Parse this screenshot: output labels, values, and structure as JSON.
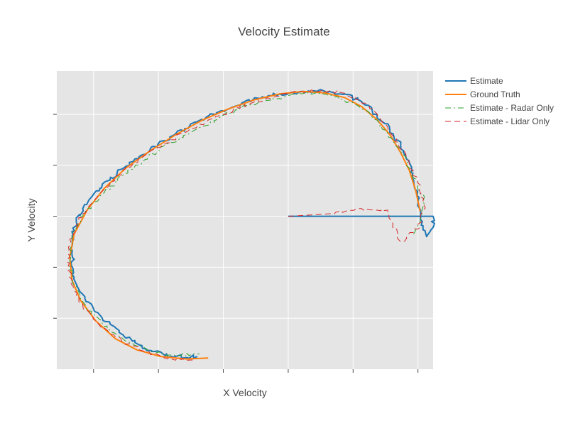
{
  "chart_data": {
    "type": "line",
    "title": "Velocity Estimate",
    "xlabel": "X Velocity",
    "ylabel": "Y Velocity",
    "xlim": [
      -5.85,
      2.85
    ],
    "ylim": [
      -3.0,
      2.85
    ],
    "xtick_values": [
      -5,
      -3.5,
      -2,
      -0.5,
      1,
      2.5
    ],
    "ytick_values": [
      -2,
      -1,
      0,
      1,
      2
    ],
    "grid": true,
    "legend_position": "top-right",
    "series": [
      {
        "name": "Estimate",
        "color": "#1f77b4",
        "dash": "solid",
        "width": 2,
        "x": [
          -0.5,
          2.85,
          2.85,
          2.7,
          2.6,
          2.5,
          2.4,
          2.3,
          2.1,
          1.85,
          1.55,
          1.2,
          0.8,
          0.35,
          -0.15,
          -0.7,
          -1.3,
          -1.9,
          -2.5,
          -3.1,
          -3.7,
          -4.3,
          -4.85,
          -5.25,
          -5.5,
          -5.5,
          -5.45,
          -5.2,
          -4.8,
          -4.3,
          -3.8,
          -3.2,
          -2.6
        ],
        "y": [
          0.0,
          0.0,
          -0.22,
          -0.4,
          -0.1,
          0.3,
          0.7,
          1.05,
          1.4,
          1.7,
          2.0,
          2.25,
          2.4,
          2.45,
          2.45,
          2.4,
          2.3,
          2.1,
          1.9,
          1.62,
          1.3,
          0.95,
          0.55,
          0.15,
          -0.3,
          -0.75,
          -1.2,
          -1.62,
          -2.0,
          -2.35,
          -2.6,
          -2.75,
          -2.75
        ]
      },
      {
        "name": "Ground Truth",
        "color": "#ff7f0e",
        "dash": "solid",
        "width": 2,
        "x": [
          2.55,
          2.45,
          2.3,
          2.1,
          1.85,
          1.55,
          1.2,
          0.8,
          0.35,
          -0.15,
          -0.7,
          -1.3,
          -1.9,
          -2.5,
          -3.1,
          -3.7,
          -4.25,
          -4.75,
          -5.15,
          -5.45,
          -5.55,
          -5.5,
          -5.3,
          -4.95,
          -4.5,
          -4.0,
          -3.45,
          -2.85,
          -2.35
        ],
        "y": [
          0.1,
          0.5,
          0.9,
          1.25,
          1.6,
          1.9,
          2.15,
          2.33,
          2.42,
          2.45,
          2.4,
          2.28,
          2.1,
          1.88,
          1.6,
          1.28,
          0.95,
          0.55,
          0.12,
          -0.35,
          -0.8,
          -1.25,
          -1.65,
          -2.05,
          -2.4,
          -2.62,
          -2.75,
          -2.8,
          -2.78
        ]
      },
      {
        "name": "Estimate - Radar Only",
        "color": "#2ca02c",
        "dash": "dashdot",
        "width": 1,
        "x": [
          2.4,
          2.55,
          2.65,
          2.5,
          2.3,
          2.1,
          1.8,
          1.5,
          1.15,
          0.75,
          0.3,
          -0.2,
          -0.8,
          -1.4,
          -2.0,
          -2.6,
          -3.2,
          -3.8,
          -4.35,
          -4.85,
          -5.25,
          -5.5,
          -5.55,
          -5.45,
          -5.2,
          -4.8,
          -4.3,
          -3.75,
          -3.15,
          -2.55
        ],
        "y": [
          -0.35,
          -0.1,
          0.25,
          0.6,
          0.95,
          1.3,
          1.62,
          1.9,
          2.15,
          2.3,
          2.4,
          2.4,
          2.3,
          2.18,
          1.98,
          1.72,
          1.45,
          1.12,
          0.78,
          0.4,
          0.0,
          -0.45,
          -0.9,
          -1.35,
          -1.75,
          -2.1,
          -2.42,
          -2.62,
          -2.72,
          -2.7
        ]
      },
      {
        "name": "Estimate - Lidar Only",
        "color": "#d62728",
        "dash": "dash",
        "width": 1,
        "x": [
          -0.5,
          0.5,
          1.2,
          1.8,
          2.1,
          2.5,
          2.65,
          2.5,
          2.3,
          2.05,
          1.8,
          1.5,
          1.15,
          0.75,
          0.3,
          -0.2,
          -0.8,
          -1.4,
          -2.0,
          -2.6,
          -3.2,
          -3.8,
          -4.35,
          -4.85,
          -5.25,
          -5.55,
          -5.6,
          -5.5,
          -5.25,
          -4.85,
          -4.35,
          -3.8,
          -3.2,
          -2.65
        ],
        "y": [
          0.0,
          0.05,
          0.15,
          0.12,
          -0.5,
          -0.25,
          0.2,
          0.65,
          1.05,
          1.45,
          1.75,
          2.05,
          2.28,
          2.42,
          2.48,
          2.45,
          2.35,
          2.2,
          2.0,
          1.78,
          1.5,
          1.2,
          0.85,
          0.45,
          0.05,
          -0.45,
          -0.9,
          -1.35,
          -1.75,
          -2.15,
          -2.45,
          -2.65,
          -2.8,
          -2.82
        ]
      }
    ]
  }
}
